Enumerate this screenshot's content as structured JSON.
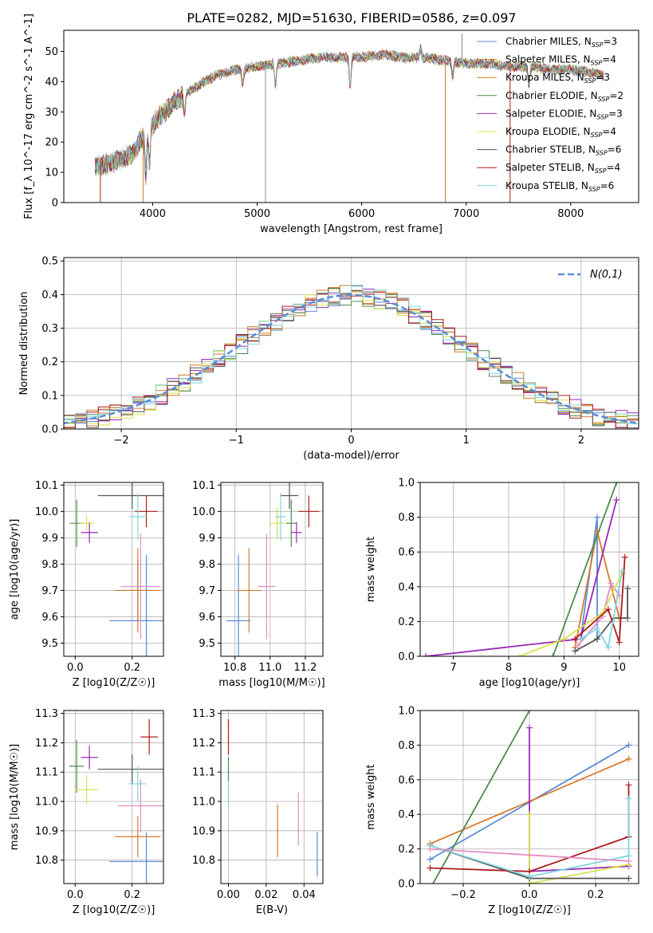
{
  "title": "PLATE=0282, MJD=51630, FIBERID=0586, z=0.097",
  "models": [
    {
      "name": "Chabrier MILES",
      "n": "3",
      "color": "#5b8bd6"
    },
    {
      "name": "Salpeter MILES",
      "n": "4",
      "color": "#d67a2e"
    },
    {
      "name": "Kroupa MILES",
      "n": "3",
      "color": "#c57d20"
    },
    {
      "name": "Chabrier ELODIE",
      "n": "2",
      "color": "#4f8a4f"
    },
    {
      "name": "Salpeter ELODIE",
      "n": "3",
      "color": "#9a2ab8"
    },
    {
      "name": "Kroupa ELODIE",
      "n": "4",
      "color": "#d8e04a"
    },
    {
      "name": "Chabrier STELIB",
      "n": "6",
      "color": "#555555"
    },
    {
      "name": "Salpeter STELIB",
      "n": "4",
      "color": "#b01c1c"
    },
    {
      "name": "Kroupa STELIB",
      "n": "6",
      "color": "#7fd6dc"
    }
  ],
  "chart_data": [
    {
      "type": "line",
      "id": "spectrum",
      "xlabel": "wavelength [Angstrom, rest frame]",
      "ylabel": "Flux [f_λ 10^-17 erg cm^-2 s^-1 A^-1]",
      "xlim": [
        3150,
        8650
      ],
      "ylim": [
        0,
        57
      ],
      "xticks": [
        4000,
        5000,
        6000,
        7000,
        8000
      ],
      "yticks": [
        0,
        10,
        20,
        30,
        40,
        50
      ],
      "grid": false,
      "legend_position": "top-right",
      "continuum": [
        [
          3450,
          12
        ],
        [
          3600,
          13
        ],
        [
          3800,
          16
        ],
        [
          4000,
          26
        ],
        [
          4200,
          33
        ],
        [
          4400,
          38
        ],
        [
          4600,
          42
        ],
        [
          4800,
          44
        ],
        [
          5000,
          45
        ],
        [
          5200,
          46
        ],
        [
          5400,
          47
        ],
        [
          5600,
          48
        ],
        [
          5800,
          48
        ],
        [
          6000,
          48
        ],
        [
          6200,
          49
        ],
        [
          6400,
          48
        ],
        [
          6600,
          48
        ],
        [
          6800,
          47
        ],
        [
          7000,
          46
        ],
        [
          7200,
          46
        ],
        [
          7400,
          45
        ],
        [
          7600,
          45
        ],
        [
          7800,
          44
        ],
        [
          8000,
          44
        ],
        [
          8200,
          43
        ],
        [
          8320,
          42
        ]
      ],
      "features": [
        [
          3935,
          -14
        ],
        [
          3970,
          -12
        ],
        [
          4305,
          -6
        ],
        [
          4862,
          -5
        ],
        [
          5175,
          -7
        ],
        [
          5890,
          -10
        ],
        [
          6563,
          3
        ],
        [
          6870,
          -5
        ],
        [
          7600,
          -6
        ]
      ],
      "spikes": [
        [
          5080,
          0,
          "#888888"
        ],
        [
          5080,
          32,
          "#888888"
        ],
        [
          6960,
          56,
          "#888888"
        ],
        [
          3910,
          0,
          "#c57d20"
        ],
        [
          6800,
          0,
          "#c57d20"
        ],
        [
          7420,
          0,
          "#b01c1c"
        ],
        [
          3500,
          0,
          "#b01c1c"
        ]
      ]
    },
    {
      "type": "bar",
      "id": "residuals",
      "xlabel": "(data-model)/error",
      "ylabel": "Normed distribution",
      "xlim": [
        -2.5,
        2.5
      ],
      "ylim": [
        0,
        0.51
      ],
      "xticks": [
        -2,
        -1,
        0,
        1,
        2
      ],
      "xticklabels": [
        "−2",
        "−1",
        "0",
        "1",
        "2"
      ],
      "yticks": [
        0.0,
        0.1,
        0.2,
        0.3,
        0.4,
        0.5
      ],
      "grid": true,
      "legend_position": "top-right",
      "gaussian_label": "N(0,1)",
      "bin_width": 0.1
    },
    {
      "type": "scatter",
      "id": "age_vs_z",
      "xlabel": "Z [log10(Z/Z☉)]",
      "ylabel": "age [log10(age/yr)]",
      "xlim": [
        -0.04,
        0.31
      ],
      "ylim": [
        9.45,
        10.11
      ],
      "xticks": [
        0.0,
        0.2
      ],
      "yticks": [
        9.5,
        9.6,
        9.7,
        9.8,
        9.9,
        10.0,
        10.1
      ],
      "grid": true,
      "points": [
        {
          "model": 0,
          "x": 0.25,
          "y": 9.585,
          "xerr": 0.13,
          "yerr": 0.25
        },
        {
          "model": 1,
          "x": 0.22,
          "y": 9.7,
          "xerr": 0.08,
          "yerr": 0.16
        },
        {
          "model": 2,
          "x": 0.22,
          "y": 9.7,
          "xerr": 0.06,
          "yerr": 0.12
        },
        {
          "model": 3,
          "x": 0.005,
          "y": 9.955,
          "xerr": 0.025,
          "yerr": 0.09
        },
        {
          "model": 4,
          "x": 0.05,
          "y": 9.92,
          "xerr": 0.03,
          "yerr": 0.04
        },
        {
          "model": 5,
          "x": 0.04,
          "y": 9.955,
          "xerr": 0.025,
          "yerr": 0.03
        },
        {
          "model": 6,
          "x": 0.2,
          "y": 10.06,
          "xerr": 0.12,
          "yerr": 0.05
        },
        {
          "model": 7,
          "x": 0.25,
          "y": 10.0,
          "xerr": 0.04,
          "yerr": 0.06
        },
        {
          "model": 8,
          "x": 0.22,
          "y": 9.98,
          "xerr": 0.03,
          "yerr": 0.09
        },
        {
          "model": 9,
          "x": 0.23,
          "y": 9.715,
          "xerr": 0.07,
          "yerr": 0.2
        }
      ]
    },
    {
      "type": "scatter",
      "id": "age_vs_mass",
      "xlabel": "mass [log10(M/M☉)]",
      "ylabel": "",
      "xlim": [
        10.72,
        11.3
      ],
      "ylim": [
        9.45,
        10.11
      ],
      "xticks": [
        10.8,
        11.0,
        11.2
      ],
      "yticks": [
        9.5,
        9.6,
        9.7,
        9.8,
        9.9,
        10.0,
        10.1
      ],
      "grid": true,
      "points": [
        {
          "model": 0,
          "x": 10.82,
          "y": 9.585,
          "xerr": 0.07,
          "yerr": 0.25
        },
        {
          "model": 1,
          "x": 10.88,
          "y": 9.7,
          "xerr": 0.07,
          "yerr": 0.16
        },
        {
          "model": 3,
          "x": 11.12,
          "y": 9.955,
          "xerr": 0.03,
          "yerr": 0.09
        },
        {
          "model": 4,
          "x": 11.15,
          "y": 9.92,
          "xerr": 0.03,
          "yerr": 0.04
        },
        {
          "model": 5,
          "x": 11.04,
          "y": 9.955,
          "xerr": 0.04,
          "yerr": 0.06
        },
        {
          "model": 6,
          "x": 11.11,
          "y": 10.06,
          "xerr": 0.05,
          "yerr": 0.05
        },
        {
          "model": 7,
          "x": 11.22,
          "y": 10.0,
          "xerr": 0.06,
          "yerr": 0.06
        },
        {
          "model": 8,
          "x": 11.06,
          "y": 9.98,
          "xerr": 0.03,
          "yerr": 0.09
        },
        {
          "model": 9,
          "x": 10.98,
          "y": 9.715,
          "xerr": 0.05,
          "yerr": 0.2
        }
      ]
    },
    {
      "type": "line",
      "id": "weight_vs_age",
      "xlabel": "age [log10(age/yr)]",
      "ylabel": "mass weight",
      "xlim": [
        6.4,
        10.35
      ],
      "ylim": [
        0,
        1.0
      ],
      "xticks": [
        7,
        8,
        9,
        10
      ],
      "yticks": [
        0.0,
        0.2,
        0.4,
        0.6,
        0.8,
        1.0
      ],
      "grid": true,
      "series": [
        {
          "model": 0,
          "points": [
            [
              9.3,
              0.1
            ],
            [
              9.6,
              0.8
            ],
            [
              9.6,
              0.1
            ]
          ]
        },
        {
          "model": 1,
          "points": [
            [
              9.2,
              0.05
            ],
            [
              9.6,
              0.72
            ],
            [
              10.0,
              0.22
            ]
          ]
        },
        {
          "model": 9,
          "points": [
            [
              9.25,
              0.06
            ],
            [
              9.7,
              0.23
            ],
            [
              9.85,
              0.42
            ],
            [
              10.0,
              0.35
            ]
          ]
        },
        {
          "model": 3,
          "points": [
            [
              8.8,
              0.0
            ],
            [
              9.95,
              1.0
            ]
          ]
        },
        {
          "model": 4,
          "points": [
            [
              6.5,
              0.0
            ],
            [
              9.3,
              0.1
            ],
            [
              9.95,
              0.9
            ]
          ]
        },
        {
          "model": 5,
          "points": [
            [
              8.2,
              0.0
            ],
            [
              9.0,
              0.1
            ],
            [
              9.7,
              0.25
            ],
            [
              10.05,
              0.48
            ]
          ]
        },
        {
          "model": 6,
          "points": [
            [
              9.2,
              0.03
            ],
            [
              9.6,
              0.1
            ],
            [
              9.9,
              0.22
            ],
            [
              10.15,
              0.22
            ],
            [
              10.15,
              0.39
            ]
          ]
        },
        {
          "model": 7,
          "points": [
            [
              9.2,
              0.1
            ],
            [
              9.8,
              0.27
            ],
            [
              10.0,
              0.08
            ],
            [
              10.1,
              0.57
            ]
          ]
        },
        {
          "model": 8,
          "points": [
            [
              9.3,
              0.1
            ],
            [
              9.6,
              0.16
            ],
            [
              9.8,
              0.05
            ],
            [
              10.05,
              0.49
            ]
          ]
        }
      ]
    },
    {
      "type": "scatter",
      "id": "mass_vs_z",
      "xlabel": "Z [log10(Z/Z☉)]",
      "ylabel": "mass [log10(M/M☉)]",
      "xlim": [
        -0.04,
        0.31
      ],
      "ylim": [
        10.72,
        11.31
      ],
      "xticks": [
        0.0,
        0.2
      ],
      "yticks": [
        10.8,
        10.9,
        11.0,
        11.1,
        11.2,
        11.3
      ],
      "grid": true,
      "points": [
        {
          "model": 0,
          "x": 0.25,
          "y": 10.795,
          "xerr": 0.13,
          "yerr": 0.1
        },
        {
          "model": 1,
          "x": 0.22,
          "y": 10.88,
          "xerr": 0.08,
          "yerr": 0.07
        },
        {
          "model": 3,
          "x": 0.005,
          "y": 11.12,
          "xerr": 0.025,
          "yerr": 0.09
        },
        {
          "model": 4,
          "x": 0.05,
          "y": 11.15,
          "xerr": 0.03,
          "yerr": 0.04
        },
        {
          "model": 5,
          "x": 0.04,
          "y": 11.04,
          "xerr": 0.04,
          "yerr": 0.05
        },
        {
          "model": 6,
          "x": 0.2,
          "y": 11.11,
          "xerr": 0.12,
          "yerr": 0.05
        },
        {
          "model": 7,
          "x": 0.26,
          "y": 11.22,
          "xerr": 0.03,
          "yerr": 0.06
        },
        {
          "model": 8,
          "x": 0.22,
          "y": 11.06,
          "xerr": 0.03,
          "yerr": 0.06
        },
        {
          "model": 9,
          "x": 0.23,
          "y": 10.985,
          "xerr": 0.08,
          "yerr": 0.09
        }
      ]
    },
    {
      "type": "scatter",
      "id": "mass_vs_ebv",
      "xlabel": "E(B-V)",
      "ylabel": "",
      "xlim": [
        -0.004,
        0.05
      ],
      "ylim": [
        10.72,
        11.31
      ],
      "xticks": [
        0.0,
        0.02,
        0.04
      ],
      "yticks": [
        10.8,
        10.9,
        11.0,
        11.1,
        11.2,
        11.3
      ],
      "grid": true,
      "points": [
        {
          "model": 0,
          "x": 0.047,
          "y": 10.82,
          "xerr": 0,
          "yerr": 0.075
        },
        {
          "model": 1,
          "x": 0.026,
          "y": 10.9,
          "xerr": 0,
          "yerr": 0.09
        },
        {
          "model": 9,
          "x": 0.037,
          "y": 10.94,
          "xerr": 0,
          "yerr": 0.09
        },
        {
          "model": 7,
          "x": 0.0,
          "y": 11.22,
          "xerr": 0,
          "yerr": 0.06
        },
        {
          "model": 8,
          "x": 0.0,
          "y": 11.05,
          "xerr": 0,
          "yerr": 0.06
        },
        {
          "model": 3,
          "x": 0.0,
          "y": 11.11,
          "xerr": 0,
          "yerr": 0.04
        }
      ]
    },
    {
      "type": "line",
      "id": "weight_vs_z",
      "xlabel": "Z [log10(Z/Z☉)]",
      "ylabel": "mass weight",
      "xlim": [
        -0.33,
        0.33
      ],
      "ylim": [
        0,
        1.0
      ],
      "xticks": [
        -0.2,
        0.0,
        0.2
      ],
      "xticklabels": [
        "−0.2",
        "0.0",
        "0.2"
      ],
      "yticks": [
        0.0,
        0.2,
        0.4,
        0.6,
        0.8,
        1.0
      ],
      "grid": true,
      "series": [
        {
          "model": 0,
          "points": [
            [
              -0.3,
              0.14
            ],
            [
              0.3,
              0.8
            ]
          ]
        },
        {
          "model": 1,
          "points": [
            [
              -0.3,
              0.23
            ],
            [
              0.3,
              0.72
            ]
          ]
        },
        {
          "model": 3,
          "points": [
            [
              -0.3,
              -0.03
            ],
            [
              0.0,
              1.0
            ]
          ]
        },
        {
          "model": 4,
          "points": [
            [
              0.0,
              0.9
            ],
            [
              0.0,
              0.07
            ],
            [
              0.3,
              0.1
            ]
          ]
        },
        {
          "model": 5,
          "points": [
            [
              0.0,
              0.4
            ],
            [
              0.0,
              0.0
            ],
            [
              0.3,
              0.11
            ]
          ]
        },
        {
          "model": 6,
          "points": [
            [
              -0.3,
              0.22
            ],
            [
              0.0,
              0.03
            ],
            [
              0.3,
              0.03
            ]
          ]
        },
        {
          "model": 7,
          "points": [
            [
              -0.3,
              0.09
            ],
            [
              0.0,
              0.07
            ],
            [
              0.3,
              0.27
            ],
            [
              0.3,
              0.57
            ]
          ]
        },
        {
          "model": 8,
          "points": [
            [
              -0.3,
              0.22
            ],
            [
              0.0,
              0.04
            ],
            [
              0.3,
              0.16
            ],
            [
              0.3,
              0.49
            ]
          ]
        },
        {
          "model": 9,
          "points": [
            [
              -0.3,
              0.2
            ],
            [
              0.3,
              0.13
            ]
          ]
        }
      ]
    }
  ],
  "extra_colors": {
    "pink": "#e28ec0",
    "gaussian": "#5b8bd6",
    "grid": "#b0b0b0"
  }
}
